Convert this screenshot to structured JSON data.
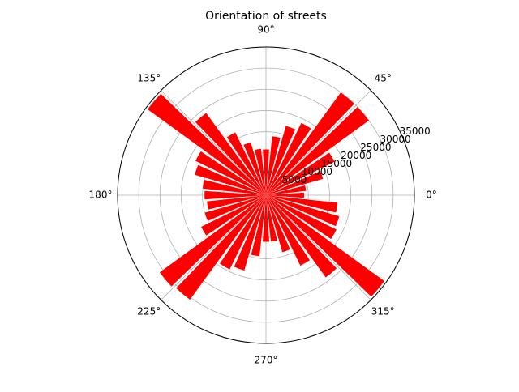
{
  "chart_data": {
    "type": "polar-bar",
    "title": "Orientation of streets",
    "x": [
      0,
      10,
      20,
      30,
      40,
      50,
      60,
      70,
      80,
      90,
      100,
      110,
      120,
      130,
      140,
      150,
      160,
      170,
      180,
      190,
      200,
      210,
      220,
      230,
      240,
      250,
      260,
      270,
      280,
      290,
      300,
      310,
      320,
      330,
      340,
      350
    ],
    "values": [
      9000,
      9500,
      14000,
      18000,
      30000,
      30000,
      19000,
      17000,
      14000,
      10800,
      11000,
      13000,
      16500,
      24000,
      34500,
      18500,
      17500,
      15000,
      14500,
      14000,
      15000,
      17000,
      31000,
      30500,
      19500,
      18500,
      14500,
      11000,
      11000,
      14000,
      18500,
      24000,
      34500,
      18500,
      18000,
      17000
    ],
    "color": "#ff0000",
    "ylim": [
      0,
      35000
    ],
    "yticks": [
      5000,
      10000,
      15000,
      20000,
      25000,
      30000,
      35000
    ],
    "xticks": [
      {
        "value": 0,
        "label": "0°"
      },
      {
        "value": 45,
        "label": "45°"
      },
      {
        "value": 90,
        "label": "90°"
      },
      {
        "value": 135,
        "label": "135°"
      },
      {
        "value": 180,
        "label": "180°"
      },
      {
        "value": 225,
        "label": "225°"
      },
      {
        "value": 270,
        "label": "270°"
      },
      {
        "value": 315,
        "label": "315°"
      }
    ],
    "grid": true
  }
}
